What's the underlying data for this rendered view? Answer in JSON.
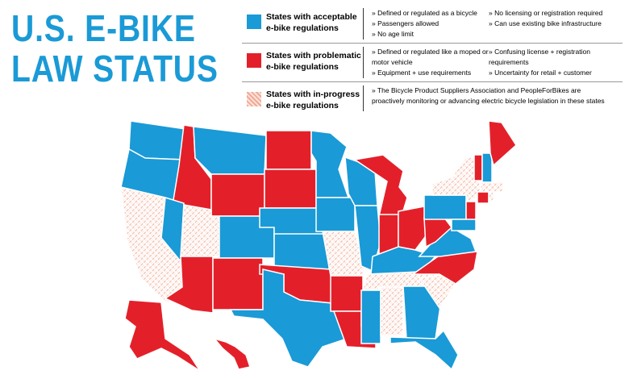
{
  "header": {
    "title": [
      "U.S. E-BIKE",
      "LAW STATUS"
    ]
  },
  "legend": {
    "rows": [
      {
        "label": [
          "States with acceptable",
          "e-bike regulations"
        ],
        "color": "#1a9ad6",
        "bullets": [
          [
            "» Defined or regulated as a bicycle",
            "» Passengers allowed",
            "» No age limit"
          ],
          [
            "» No licensing or registration required",
            "» Can use existing bike infrastructure"
          ]
        ]
      },
      {
        "label": [
          "States with problematic",
          "e-bike regulations"
        ],
        "color": "#e3202a",
        "bullets": [
          [
            "» Defined or regulated like a moped or motor vehicle",
            "» Equipment + use requirements"
          ],
          [
            "» Confusing license + registration requirements",
            "» Uncertainty for retail + customer"
          ]
        ]
      },
      {
        "label": [
          "States with in-progress",
          "e-bike regulations"
        ],
        "color": "hatch",
        "bullets": [
          [
            "» The Bicycle Product Suppliers Association and PeopleForBikes are proactively monitoring or advancing electric bicycle legislation in these states"
          ]
        ]
      }
    ]
  }
}
